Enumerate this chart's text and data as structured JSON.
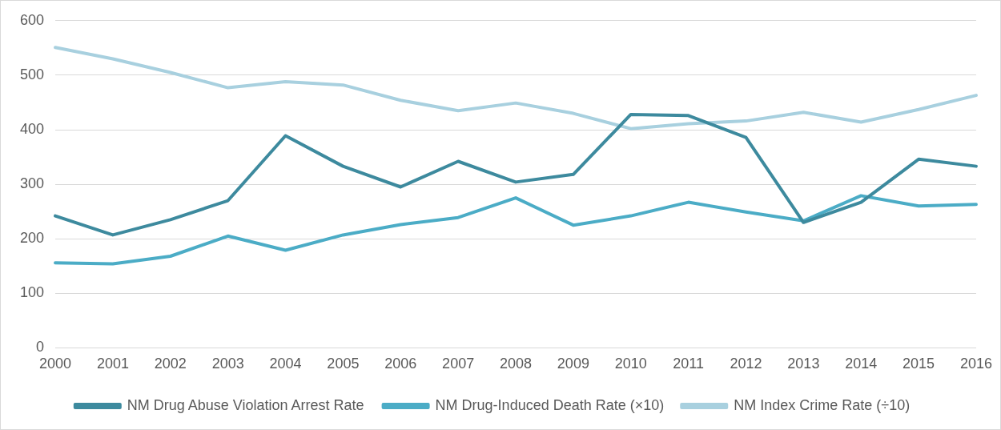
{
  "chart_data": {
    "type": "line",
    "categories": [
      "2000",
      "2001",
      "2002",
      "2003",
      "2004",
      "2005",
      "2006",
      "2007",
      "2008",
      "2009",
      "2010",
      "2011",
      "2012",
      "2013",
      "2014",
      "2015",
      "2016"
    ],
    "series": [
      {
        "name": "NM Drug Abuse Violation Arrest Rate",
        "color": "#3d8a9e",
        "values": [
          242,
          207,
          235,
          270,
          389,
          333,
          295,
          342,
          304,
          318,
          428,
          426,
          386,
          230,
          267,
          346,
          333
        ]
      },
      {
        "name": "NM Drug-Induced Death Rate (×10)",
        "color": "#4bacc6",
        "values": [
          156,
          154,
          168,
          205,
          179,
          207,
          226,
          239,
          275,
          225,
          242,
          267,
          249,
          233,
          279,
          260,
          263
        ]
      },
      {
        "name": "NM Index Crime Rate (÷10)",
        "color": "#a8d0df",
        "values": [
          551,
          530,
          505,
          477,
          488,
          482,
          454,
          435,
          449,
          430,
          402,
          411,
          416,
          432,
          414,
          437,
          463
        ]
      }
    ],
    "ylim": [
      0,
      600
    ],
    "yticks": [
      0,
      100,
      200,
      300,
      400,
      500,
      600
    ],
    "grid": "y",
    "legend": "bottom",
    "marker": "none",
    "line_style": "solid"
  }
}
